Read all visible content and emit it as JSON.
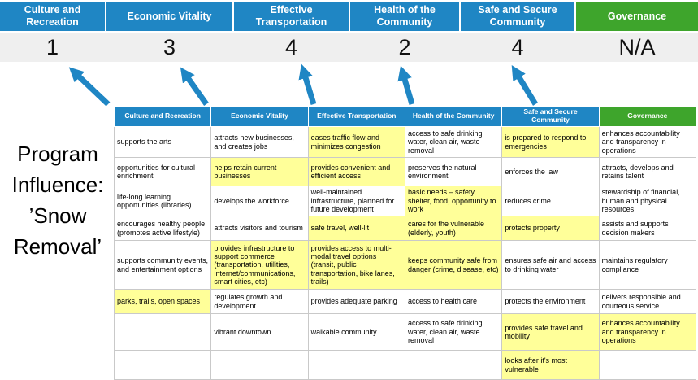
{
  "colors": {
    "blue": "#1F86C4",
    "green": "#3EA52C",
    "highlight": "#FFFF99",
    "score_bg": "#EFEFEF",
    "arrow": "#1F86C4"
  },
  "summary": {
    "categories": [
      {
        "label": "Culture and Recreation",
        "score": "1"
      },
      {
        "label": "Economic Vitality",
        "score": "3"
      },
      {
        "label": "Effective Transportation",
        "score": "4"
      },
      {
        "label": "Health of the Community",
        "score": "2"
      },
      {
        "label": "Safe and Secure Community",
        "score": "4"
      },
      {
        "label": "Governance",
        "score": "N/A"
      }
    ]
  },
  "program_label": {
    "line1": "Program",
    "line2": "Influence:",
    "line3": "’Snow",
    "line4": "Removal’"
  },
  "matrix": {
    "headers": [
      "Culture and Recreation",
      "Economic Vitality",
      "Effective Transportation",
      "Health of the Community",
      "Safe and Secure Community",
      "Governance"
    ],
    "rows": [
      [
        {
          "text": "supports the arts",
          "highlight": false
        },
        {
          "text": "attracts new businesses, and creates jobs",
          "highlight": false
        },
        {
          "text": "eases traffic flow and minimizes congestion",
          "highlight": true
        },
        {
          "text": "access to safe drinking water, clean air, waste removal",
          "highlight": false
        },
        {
          "text": "is prepared to respond to emergencies",
          "highlight": true
        },
        {
          "text": "enhances accountability and transparency in operations",
          "highlight": false
        }
      ],
      [
        {
          "text": "opportunities for cultural enrichment",
          "highlight": false
        },
        {
          "text": "helps retain current businesses",
          "highlight": true
        },
        {
          "text": "provides convenient and efficient access",
          "highlight": true
        },
        {
          "text": "preserves the natural environment",
          "highlight": false
        },
        {
          "text": "enforces the law",
          "highlight": false
        },
        {
          "text": "attracts, develops and retains talent",
          "highlight": false
        }
      ],
      [
        {
          "text": "life-long learning opportunities (libraries)",
          "highlight": false
        },
        {
          "text": "develops the workforce",
          "highlight": false
        },
        {
          "text": "well-maintained infrastructure, planned for future development",
          "highlight": false
        },
        {
          "text": "basic needs – safety, shelter, food, opportunity to work",
          "highlight": true
        },
        {
          "text": "reduces crime",
          "highlight": false
        },
        {
          "text": "stewardship of financial, human and physical resources",
          "highlight": false
        }
      ],
      [
        {
          "text": "encourages healthy people (promotes active lifestyle)",
          "highlight": false
        },
        {
          "text": "attracts visitors and tourism",
          "highlight": false
        },
        {
          "text": "safe travel, well-lit",
          "highlight": true
        },
        {
          "text": "cares for the vulnerable (elderly, youth)",
          "highlight": true
        },
        {
          "text": "protects property",
          "highlight": true
        },
        {
          "text": "assists and supports decision makers",
          "highlight": false
        }
      ],
      [
        {
          "text": "supports community events, and entertainment options",
          "highlight": false
        },
        {
          "text": "provides infrastructure to support commerce (transportation, utilities, internet/communications, smart cities, etc)",
          "highlight": true
        },
        {
          "text": "provides access to multi-modal travel options (transit, public transportation, bike lanes, trails)",
          "highlight": true
        },
        {
          "text": "keeps community safe from danger (crime, disease, etc)",
          "highlight": true
        },
        {
          "text": "ensures safe air and access to drinking water",
          "highlight": false
        },
        {
          "text": "maintains regulatory compliance",
          "highlight": false
        }
      ],
      [
        {
          "text": "parks, trails, open spaces",
          "highlight": true
        },
        {
          "text": "regulates growth and development",
          "highlight": false
        },
        {
          "text": "provides adequate parking",
          "highlight": false
        },
        {
          "text": "access to health care",
          "highlight": false
        },
        {
          "text": "protects the environment",
          "highlight": false
        },
        {
          "text": "delivers responsible and courteous service",
          "highlight": false
        }
      ],
      [
        {
          "text": "",
          "highlight": false
        },
        {
          "text": "vibrant downtown",
          "highlight": false
        },
        {
          "text": "walkable community",
          "highlight": false
        },
        {
          "text": "access to safe drinking water, clean air, waste removal",
          "highlight": false
        },
        {
          "text": "provides safe travel and mobility",
          "highlight": true
        },
        {
          "text": "enhances accountability and transparency in operations",
          "highlight": true
        }
      ],
      [
        {
          "text": "",
          "highlight": false
        },
        {
          "text": "",
          "highlight": false
        },
        {
          "text": "",
          "highlight": false
        },
        {
          "text": "",
          "highlight": false
        },
        {
          "text": "looks after it's most vulnerable",
          "highlight": true
        },
        {
          "text": "",
          "highlight": false
        }
      ]
    ]
  }
}
